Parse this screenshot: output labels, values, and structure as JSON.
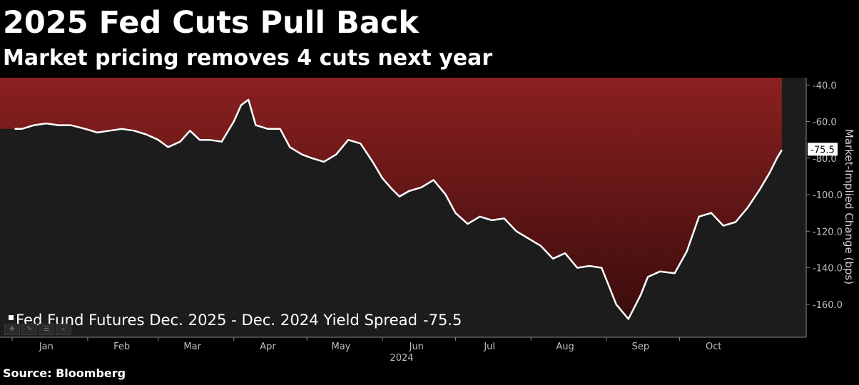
{
  "header": {
    "title": "2025 Fed Cuts Pull Back",
    "subtitle": "Market pricing removes 4 cuts next year"
  },
  "footer": {
    "source": "Source: Bloomberg"
  },
  "toolbar": {
    "icons": [
      "move-icon",
      "pencil-icon",
      "list-icon",
      "zoom-icon"
    ],
    "glyphs": [
      "✥",
      "✎",
      "☰",
      "⌕"
    ]
  },
  "colors": {
    "background": "#000000",
    "plot_background": "#1c1c1c",
    "fill_top": "#8b2020",
    "fill_bottom": "#3a0c0c",
    "line": "#ffffff",
    "axis_text": "#bdbdbd"
  },
  "chart_data": {
    "type": "area",
    "ylabel": "Market-Implied Change (bps)",
    "xlabel": "2024",
    "ylim": [
      -178,
      -36
    ],
    "yticks": [
      -40,
      -60,
      -80,
      -100,
      -120,
      -140,
      -160
    ],
    "ytick_labels": [
      "-40.0",
      "-60.0",
      "-80.0",
      "-100.0",
      "-120.0",
      "-140.0",
      "-160.0"
    ],
    "month_labels": [
      "Jan",
      "Feb",
      "Mar",
      "Apr",
      "May",
      "Jun",
      "Jul",
      "Aug",
      "Sep",
      "Oct"
    ],
    "year_label": "2024",
    "legend": {
      "position": "bottom-left",
      "label": "Fed Fund Futures Dec. 2025 - Dec. 2024 Yield Spread",
      "value": "-75.5"
    },
    "last_value_label": "-75.5",
    "grid": false,
    "series": [
      {
        "name": "Fed Fund Futures Dec. 2025 - Dec. 2024 Yield Spread",
        "x": [
          "2024-01-02",
          "2024-01-05",
          "2024-01-10",
          "2024-01-15",
          "2024-01-20",
          "2024-01-25",
          "2024-01-31",
          "2024-02-05",
          "2024-02-10",
          "2024-02-15",
          "2024-02-20",
          "2024-02-25",
          "2024-03-01",
          "2024-03-05",
          "2024-03-10",
          "2024-03-14",
          "2024-03-18",
          "2024-03-22",
          "2024-03-27",
          "2024-04-01",
          "2024-04-04",
          "2024-04-07",
          "2024-04-10",
          "2024-04-15",
          "2024-04-20",
          "2024-04-24",
          "2024-04-29",
          "2024-05-03",
          "2024-05-08",
          "2024-05-13",
          "2024-05-18",
          "2024-05-23",
          "2024-05-28",
          "2024-06-01",
          "2024-06-05",
          "2024-06-08",
          "2024-06-12",
          "2024-06-17",
          "2024-06-22",
          "2024-06-27",
          "2024-07-01",
          "2024-07-06",
          "2024-07-11",
          "2024-07-16",
          "2024-07-21",
          "2024-07-26",
          "2024-07-31",
          "2024-08-05",
          "2024-08-10",
          "2024-08-15",
          "2024-08-20",
          "2024-08-25",
          "2024-08-30",
          "2024-09-02",
          "2024-09-05",
          "2024-09-10",
          "2024-09-15",
          "2024-09-18",
          "2024-09-23",
          "2024-09-29",
          "2024-10-04",
          "2024-10-09",
          "2024-10-14",
          "2024-10-19",
          "2024-10-24",
          "2024-10-29",
          "2024-11-03",
          "2024-11-07",
          "2024-11-10",
          "2024-11-12"
        ],
        "y": [
          -64,
          -64,
          -62,
          -61,
          -62,
          -62,
          -64,
          -66,
          -65,
          -64,
          -65,
          -67,
          -70,
          -74,
          -71,
          -65,
          -70,
          -70,
          -71,
          -60,
          -51,
          -48,
          -62,
          -64,
          -64,
          -74,
          -78,
          -80,
          -82,
          -78,
          -70,
          -72,
          -82,
          -91,
          -97,
          -101,
          -98,
          -96,
          -92,
          -100,
          -110,
          -116,
          -112,
          -114,
          -113,
          -120,
          -124,
          -128,
          -135,
          -132,
          -140,
          -139,
          -140,
          -150,
          -160,
          -168,
          -155,
          -145,
          -142,
          -143,
          -131,
          -112,
          -110,
          -117,
          -115,
          -107,
          -97,
          -88,
          -80,
          -75.5
        ]
      }
    ]
  }
}
